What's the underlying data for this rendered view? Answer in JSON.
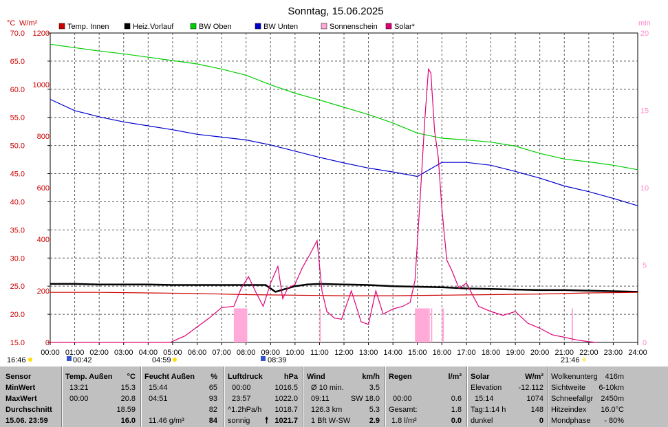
{
  "title": "Sonntag, 15.06.2025",
  "axis_units": {
    "left1": "°C",
    "left2": "W/m²",
    "right": "min"
  },
  "legend": [
    {
      "label": "Temp. Innen",
      "color": "#cc0000"
    },
    {
      "label": "Heiz.Vorlauf",
      "color": "#000000"
    },
    {
      "label": "BW Oben",
      "color": "#00cc00"
    },
    {
      "label": "BW Unten",
      "color": "#0000cc"
    },
    {
      "label": "Sonnenschein",
      "color": "#ffaad8"
    },
    {
      "label": "Solar*",
      "color": "#dd0077"
    }
  ],
  "sun_marks": {
    "sunrise": "04:59",
    "sunset": "21:46",
    "daylight": "16:46",
    "moonrise": "00:42",
    "moonset": "08:39"
  },
  "chart_data": {
    "type": "line",
    "x_ticks": [
      "00:00",
      "01:00",
      "02:00",
      "03:00",
      "04:00",
      "05:00",
      "06:00",
      "07:00",
      "08:00",
      "09:00",
      "10:00",
      "11:00",
      "12:00",
      "13:00",
      "14:00",
      "15:00",
      "16:00",
      "17:00",
      "18:00",
      "19:00",
      "20:00",
      "21:00",
      "22:00",
      "23:00",
      "24:00"
    ],
    "y_left_ticks": [
      "15.0",
      "20.0",
      "25.0",
      "30.0",
      "35.0",
      "40.0",
      "45.0",
      "50.0",
      "55.0",
      "60.0",
      "65.0",
      "70.0"
    ],
    "y_left_range": [
      15,
      70
    ],
    "y_solar_ticks": [
      "0",
      "200",
      "400",
      "600",
      "800",
      "1000",
      "1200"
    ],
    "y_solar_range": [
      0,
      1200
    ],
    "y_right_ticks": [
      "0",
      "5",
      "10",
      "15",
      "20"
    ],
    "y_right_range": [
      0,
      20
    ],
    "grid": true,
    "series": [
      {
        "name": "BW Oben",
        "axis": "temp",
        "color": "#00cc00",
        "x": [
          0,
          1,
          2,
          3,
          4,
          5,
          6,
          7,
          8,
          9,
          10,
          11,
          12,
          13,
          14,
          15,
          16,
          17,
          18,
          19,
          20,
          21,
          22,
          23,
          24
        ],
        "y": [
          68.0,
          67.4,
          66.8,
          66.3,
          65.7,
          65.1,
          64.5,
          63.6,
          62.5,
          60.8,
          59.3,
          58.1,
          56.8,
          55.5,
          54.0,
          52.2,
          51.3,
          51.0,
          50.6,
          49.9,
          48.6,
          47.6,
          47.1,
          46.5,
          45.7
        ]
      },
      {
        "name": "BW Unten",
        "axis": "temp",
        "color": "#0000cc",
        "x": [
          0,
          1,
          2,
          3,
          4,
          5,
          6,
          7,
          8,
          9,
          10,
          11,
          12,
          13,
          14,
          15,
          16,
          17,
          18,
          19,
          20,
          21,
          22,
          23,
          24
        ],
        "y": [
          58.2,
          56.2,
          55.1,
          54.2,
          53.5,
          52.8,
          52.0,
          51.5,
          51.0,
          50.1,
          49.0,
          47.9,
          46.9,
          46.0,
          45.3,
          44.5,
          47.0,
          47.0,
          46.5,
          45.4,
          44.2,
          42.8,
          41.8,
          40.6,
          39.3
        ]
      },
      {
        "name": "Heiz.Vorlauf",
        "axis": "temp",
        "color": "#000000",
        "x": [
          0,
          1,
          2,
          3,
          4,
          5,
          6,
          7,
          8,
          8.8,
          9.2,
          9.6,
          10,
          10.5,
          11,
          12,
          13,
          14,
          15,
          16,
          17,
          18,
          19,
          20,
          21,
          22,
          23,
          24
        ],
        "y": [
          25.4,
          25.4,
          25.3,
          25.3,
          25.3,
          25.2,
          25.2,
          25.2,
          25.2,
          25.2,
          24.0,
          24.5,
          25.0,
          25.3,
          25.4,
          25.3,
          25.2,
          25.0,
          24.9,
          24.8,
          24.6,
          24.5,
          24.4,
          24.3,
          24.3,
          24.2,
          24.1,
          24.0
        ]
      },
      {
        "name": "Temp. Innen",
        "axis": "temp",
        "color": "#cc0000",
        "x": [
          0,
          2,
          4,
          6,
          8,
          10,
          12,
          14,
          16,
          18,
          20,
          22,
          24
        ],
        "y": [
          23.9,
          23.9,
          23.8,
          23.7,
          23.5,
          23.4,
          23.3,
          23.3,
          23.4,
          23.5,
          23.6,
          23.8,
          23.9
        ]
      },
      {
        "name": "Solar*",
        "axis": "solar",
        "color": "#dd0077",
        "x": [
          0,
          4.9,
          5.5,
          6,
          6.5,
          7,
          7.5,
          7.8,
          8.1,
          8.4,
          8.7,
          9,
          9.3,
          9.5,
          9.7,
          10,
          10.3,
          10.6,
          10.9,
          11.1,
          11.3,
          11.6,
          11.9,
          12.3,
          12.7,
          13,
          13.3,
          13.6,
          14,
          14.4,
          14.7,
          14.9,
          15.1,
          15.3,
          15.45,
          15.55,
          15.7,
          15.85,
          16,
          16.2,
          16.4,
          16.7,
          17,
          17.5,
          18,
          18.5,
          19,
          19.5,
          20,
          20.5,
          21,
          21.5,
          22,
          22.3
        ],
        "y": [
          0,
          0,
          25,
          60,
          95,
          135,
          140,
          210,
          255,
          195,
          140,
          230,
          295,
          170,
          210,
          225,
          290,
          340,
          395,
          200,
          120,
          95,
          90,
          200,
          80,
          70,
          200,
          110,
          130,
          140,
          155,
          240,
          540,
          860,
          1060,
          1045,
          820,
          720,
          520,
          320,
          280,
          210,
          230,
          140,
          120,
          105,
          120,
          75,
          55,
          30,
          20,
          10,
          3,
          0
        ]
      }
    ],
    "sunshine_minutes": {
      "axis": "min",
      "color": "#ffaad8",
      "x": [
        7.5,
        11.0,
        14.9,
        15.45,
        15.55,
        16.0,
        21.3
      ],
      "y": [
        2.2,
        2.2,
        2.2,
        2.2,
        2.2,
        2.2,
        2.2
      ]
    }
  },
  "summary": {
    "sensor": {
      "header": "Sensor",
      "rows": [
        "MinWert",
        "MaxWert",
        "Durchschnitt",
        "15.06. 23:59"
      ]
    },
    "temp": {
      "header": "Temp. Außen",
      "unit": "°C",
      "rows": [
        [
          "13:21",
          "15.3"
        ],
        [
          "00:00",
          "20.8"
        ],
        [
          "",
          "18.59"
        ],
        [
          "",
          "16.0"
        ]
      ]
    },
    "feucht": {
      "header": "Feucht Außen",
      "unit": "%",
      "rows": [
        [
          "15:44",
          "65"
        ],
        [
          "04:51",
          "93"
        ],
        [
          "",
          "82"
        ],
        [
          "11.46 g/m³",
          "84"
        ]
      ]
    },
    "luft": {
      "header": "Luftdruck",
      "unit": "hPa",
      "rows": [
        [
          "00:00",
          "1016.5"
        ],
        [
          "23:57",
          "1022.0"
        ],
        [
          "^1.2hPa/h",
          "1018.7"
        ],
        [
          "sonnig",
          "1021.7"
        ]
      ]
    },
    "wind": {
      "header": "Wind",
      "unit": "km/h",
      "rows": [
        [
          "Ø 10 min.",
          "3.5"
        ],
        [
          "09:11",
          "SW 18.0"
        ],
        [
          "126.3 km",
          "5.3"
        ],
        [
          "1 Bft W-SW",
          "2.9"
        ]
      ]
    },
    "regen": {
      "header": "Regen",
      "unit": "l/m²",
      "rows": [
        [
          "",
          ""
        ],
        [
          "00:00",
          "0.6"
        ],
        [
          "Gesamt:",
          "1.8"
        ],
        [
          "1.8 l/m²",
          "0.0"
        ]
      ]
    },
    "solar": {
      "header": "Solar",
      "unit": "W/m²",
      "rows": [
        [
          "Elevation",
          "-12.112"
        ],
        [
          "15:14",
          "1074"
        ],
        [
          "Tag:1:14 h",
          "148"
        ],
        [
          "dunkel",
          "0"
        ]
      ]
    },
    "extra": {
      "rows": [
        [
          "Wolkenunterg",
          "416m"
        ],
        [
          "Sichtweite",
          "6-10km"
        ],
        [
          "Schneefallgr",
          "2450m"
        ],
        [
          "Hitzeindex",
          "16.0°C"
        ],
        [
          "Mondphase",
          "- 80%"
        ]
      ]
    }
  }
}
